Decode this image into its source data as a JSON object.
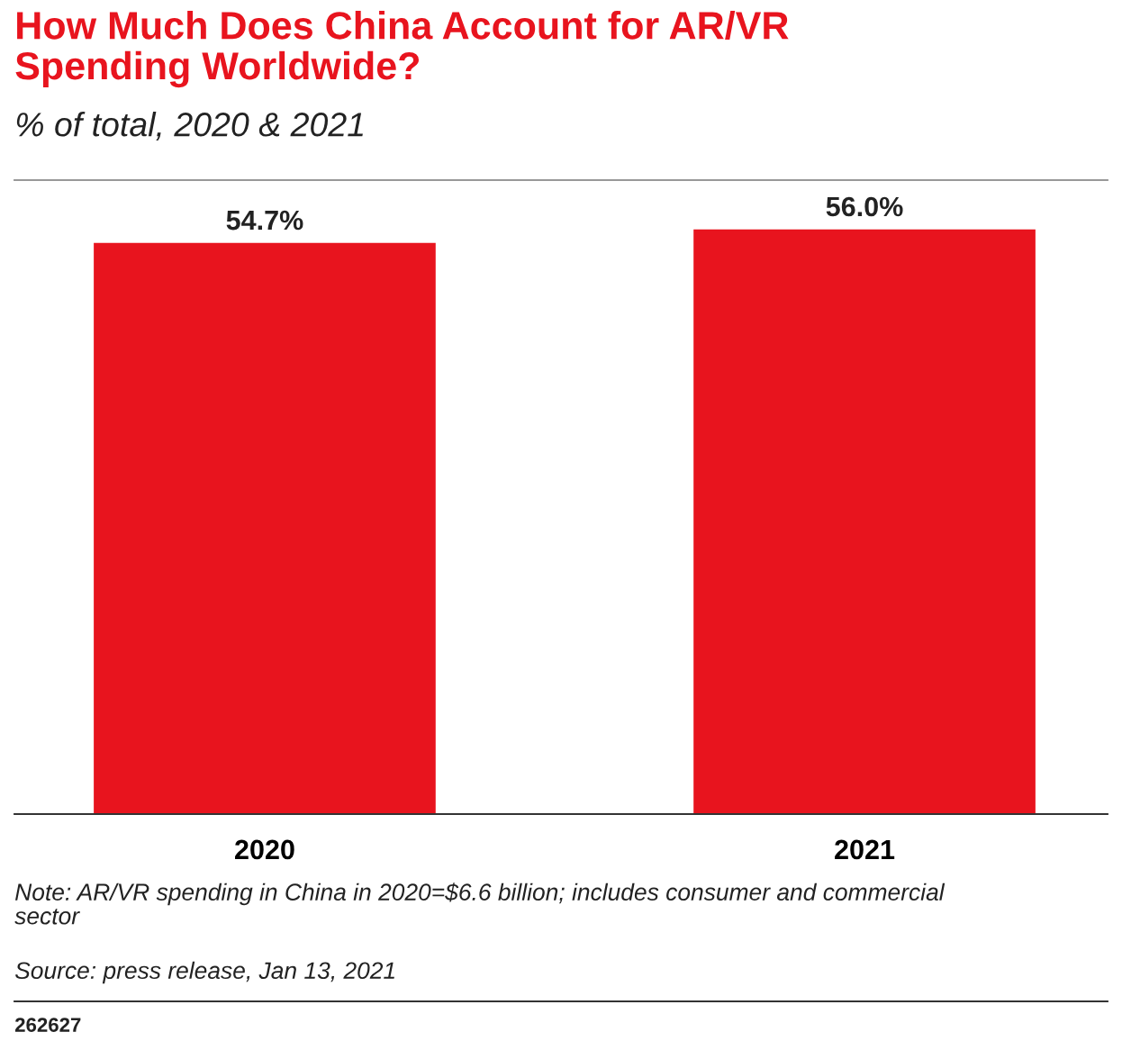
{
  "chart_data": {
    "type": "bar",
    "title": "How Much Does China Account for AR/VR\nSpending Worldwide?",
    "subtitle": "% of total, 2020 & 2021",
    "categories": [
      "2020",
      "2021"
    ],
    "values": [
      54.7,
      56.0
    ],
    "value_labels": [
      "54.7%",
      "56.0%"
    ],
    "color": "#e8141e",
    "grid": false,
    "legend": false,
    "annotations": [
      "Note: AR/VR spending in China in 2020=$6.6 billion; includes consumer and commercial\nsector",
      "Source: press release, Jan 13, 2021",
      "262627"
    ]
  }
}
